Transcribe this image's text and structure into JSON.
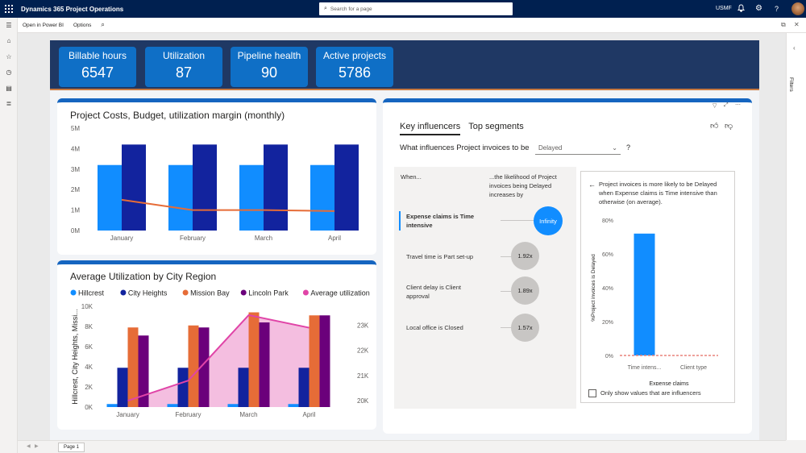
{
  "topbar": {
    "app_name": "Dynamics 365 Project Operations",
    "search_placeholder": "Search for a page",
    "company": "USMF"
  },
  "cmdbar": {
    "open_in_powerbi": "Open in Power BI",
    "options": "Options"
  },
  "filters_label": "Filters",
  "kpis": [
    {
      "title": "Billable hours",
      "value": "6547"
    },
    {
      "title": "Utilization",
      "value": "87"
    },
    {
      "title": "Pipeline health",
      "value": "90"
    },
    {
      "title": "Active projects",
      "value": "5786"
    }
  ],
  "page_tab": "Page 1",
  "key_influencers": {
    "tabs": [
      "Key influencers",
      "Top segments"
    ],
    "question": "What influences Project invoices to be",
    "selected_value": "Delayed",
    "help": "?",
    "col_when": "When...",
    "col_likelihood": "...the likelihood of Project invoices being Delayed increases by",
    "rows": [
      {
        "label": "Expense claims is Time intensive",
        "value": "Infinity"
      },
      {
        "label": "Travel time is Part set-up",
        "value": "1.92x"
      },
      {
        "label": "Client delay is Client approval",
        "value": "1.89x"
      },
      {
        "label": "Local office is Closed",
        "value": "1.57x"
      }
    ],
    "detail_text": "Project invoices is more likely to be Delayed when Expense claims is Time intensive than otherwise (on average).",
    "detail_checkbox": "Only show values that are influencers",
    "detail_chart": {
      "type": "bar",
      "ylabel": "%Project invoices is Delayed",
      "xlabel": "Expense claims",
      "y_ticks": [
        "0%",
        "20%",
        "40%",
        "60%",
        "80%"
      ],
      "ylim": [
        0,
        80
      ],
      "categories": [
        "Time intens...",
        "Client type"
      ],
      "values": [
        72,
        0
      ],
      "average": 0,
      "bar_color": "#118dff",
      "avg_color": "#e8837a"
    }
  },
  "chart_data": [
    {
      "type": "bar",
      "title": "Project Costs, Budget, utilization margin (monthly)",
      "categories": [
        "January",
        "February",
        "March",
        "April"
      ],
      "y_ticks": [
        "0M",
        "1M",
        "2M",
        "3M",
        "4M",
        "5M"
      ],
      "ylim": [
        0,
        5
      ],
      "series": [
        {
          "values": [
            3.2,
            3.2,
            3.2,
            3.2
          ],
          "color": "#118dff"
        },
        {
          "values": [
            4.2,
            4.2,
            4.2,
            4.2
          ],
          "color": "#12239e"
        },
        {
          "values": [
            1.5,
            1.0,
            1.0,
            0.95
          ],
          "color": "#e66c37",
          "kind": "line"
        }
      ]
    },
    {
      "type": "bar",
      "title": "Average Utilization by City Region",
      "legend": [
        "Hillcrest",
        "City Heights",
        "Mission Bay",
        "Lincoln Park",
        "Average utilization"
      ],
      "ylabel": "Hillcrest, City Heights, Missi...",
      "categories": [
        "January",
        "February",
        "March",
        "April"
      ],
      "y_ticks": [
        "0K",
        "2K",
        "4K",
        "6K",
        "8K",
        "10K"
      ],
      "ylim": [
        0,
        10
      ],
      "y2_ticks": [
        "20K",
        "21K",
        "22K",
        "23K"
      ],
      "y2lim": [
        19.75,
        23.75
      ],
      "series": [
        {
          "name": "Hillcrest",
          "values": [
            0.3,
            0.3,
            0.3,
            0.3
          ],
          "color": "#118dff"
        },
        {
          "name": "City Heights",
          "values": [
            3.9,
            3.9,
            3.9,
            3.9
          ],
          "color": "#12239e"
        },
        {
          "name": "Mission Bay",
          "values": [
            7.9,
            8.1,
            9.4,
            9.1
          ],
          "color": "#e66c37"
        },
        {
          "name": "Lincoln Park",
          "values": [
            7.1,
            7.9,
            8.4,
            9.1
          ],
          "color": "#6b007b"
        },
        {
          "name": "Average utilization",
          "values": [
            20.0,
            20.8,
            23.4,
            22.9
          ],
          "color": "#e044a7",
          "kind": "area",
          "axis": "y2"
        }
      ]
    }
  ]
}
